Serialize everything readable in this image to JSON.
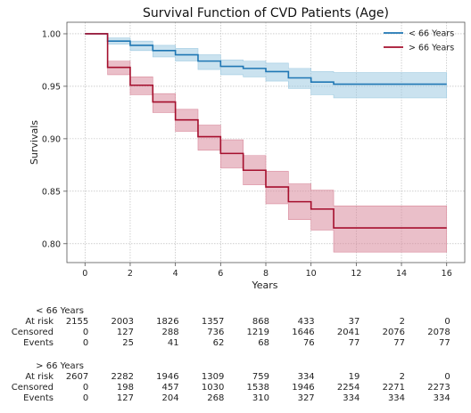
{
  "chart_data": {
    "type": "line",
    "title": "Survival Function of CVD Patients (Age)",
    "xlabel": "Years",
    "ylabel": "Survivals",
    "xlim": [
      -0.8,
      16.8
    ],
    "ylim": [
      0.782,
      1.011
    ],
    "xticks": [
      0,
      2,
      4,
      6,
      8,
      10,
      12,
      14,
      16
    ],
    "xtick_labels": [
      "0",
      "2",
      "4",
      "6",
      "8",
      "10",
      "12",
      "14",
      "16"
    ],
    "yticks": [
      0.8,
      0.85,
      0.9,
      0.95,
      1.0
    ],
    "ytick_labels": [
      "0.80",
      "0.85",
      "0.90",
      "0.95",
      "1.00"
    ],
    "grid": true,
    "legend_position": "top-right",
    "series": [
      {
        "name": "< 66 Years",
        "color": "#1f77b4",
        "ci_color": "#9ecae1",
        "x": [
          0,
          1,
          2,
          3,
          4,
          5,
          6,
          7,
          8,
          9,
          10,
          11,
          16
        ],
        "y": [
          1.0,
          0.993,
          0.989,
          0.984,
          0.98,
          0.974,
          0.969,
          0.967,
          0.964,
          0.958,
          0.954,
          0.952,
          0.952
        ],
        "ci_lower": [
          1.0,
          0.99,
          0.984,
          0.978,
          0.974,
          0.966,
          0.961,
          0.959,
          0.955,
          0.948,
          0.942,
          0.939,
          0.939
        ],
        "ci_upper": [
          1.0,
          0.996,
          0.993,
          0.989,
          0.986,
          0.98,
          0.975,
          0.974,
          0.972,
          0.967,
          0.964,
          0.963,
          0.963
        ]
      },
      {
        "name": "> 66 Years",
        "color": "#a50f2d",
        "ci_color": "#d98a9c",
        "x": [
          0,
          1,
          2,
          3,
          4,
          5,
          6,
          7,
          8,
          9,
          10,
          11,
          16
        ],
        "y": [
          1.0,
          0.968,
          0.951,
          0.935,
          0.918,
          0.902,
          0.886,
          0.87,
          0.854,
          0.84,
          0.833,
          0.815,
          0.815
        ],
        "ci_lower": [
          1.0,
          0.961,
          0.942,
          0.925,
          0.907,
          0.889,
          0.872,
          0.856,
          0.838,
          0.823,
          0.813,
          0.792,
          0.792
        ],
        "ci_upper": [
          1.0,
          0.974,
          0.959,
          0.943,
          0.928,
          0.913,
          0.899,
          0.884,
          0.869,
          0.857,
          0.851,
          0.836,
          0.836
        ]
      }
    ],
    "risk_table": {
      "time_points": [
        "0",
        "2",
        "4",
        "6",
        "8",
        "10",
        "12",
        "14",
        "16"
      ],
      "groups": [
        {
          "title": "< 66 Years",
          "rows": [
            {
              "label": "At risk",
              "values": [
                "2155",
                "2003",
                "1826",
                "1357",
                "868",
                "433",
                "37",
                "2",
                "0"
              ]
            },
            {
              "label": "Censored",
              "values": [
                "0",
                "127",
                "288",
                "736",
                "1219",
                "1646",
                "2041",
                "2076",
                "2078"
              ]
            },
            {
              "label": "Events",
              "values": [
                "0",
                "25",
                "41",
                "62",
                "68",
                "76",
                "77",
                "77",
                "77"
              ]
            }
          ]
        },
        {
          "title": "> 66 Years",
          "rows": [
            {
              "label": "At risk",
              "values": [
                "2607",
                "2282",
                "1946",
                "1309",
                "759",
                "334",
                "19",
                "2",
                "0"
              ]
            },
            {
              "label": "Censored",
              "values": [
                "0",
                "198",
                "457",
                "1030",
                "1538",
                "1946",
                "2254",
                "2271",
                "2273"
              ]
            },
            {
              "label": "Events",
              "values": [
                "0",
                "127",
                "204",
                "268",
                "310",
                "327",
                "334",
                "334",
                "334"
              ]
            }
          ]
        }
      ]
    }
  }
}
